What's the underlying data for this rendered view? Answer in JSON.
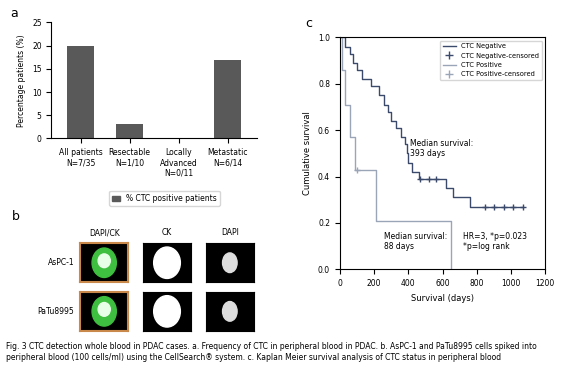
{
  "chart_data": [
    {
      "type": "bar",
      "title": "a",
      "categories": [
        "All patients\nN=7/35",
        "Resectable\nN=1/10",
        "Locally\nAdvanced\nN=0/11",
        "Metastatic\nN=6/14"
      ],
      "series": [
        {
          "name": "% CTC positive patients",
          "color": "#595959",
          "values": [
            20,
            3,
            0,
            17
          ]
        }
      ],
      "y_label": "Percentage patients (%)",
      "ylim": [
        0,
        25
      ],
      "yticks": [
        0,
        5,
        10,
        15,
        20,
        25
      ],
      "legend": "below",
      "grid": false
    },
    {
      "type": "line",
      "title": "c",
      "x_label": "Survival (days)",
      "y_label": "Cumulative survival",
      "xlim": [
        0,
        1200
      ],
      "xticks": [
        0,
        200,
        400,
        600,
        800,
        1000,
        1200
      ],
      "ylim": [
        0.0,
        1.0
      ],
      "yticks": [
        0.0,
        0.2,
        0.4,
        0.6,
        0.8,
        1.0
      ],
      "legend": "upper right",
      "grid": false,
      "series": [
        {
          "name": "CTC Negative",
          "type": "line",
          "line_style": "steps",
          "color": "#3b4a6b",
          "x": [
            0,
            30,
            60,
            80,
            100,
            130,
            180,
            230,
            260,
            280,
            300,
            330,
            360,
            380,
            390,
            400,
            420,
            460,
            620,
            660,
            760,
            1070
          ],
          "values": [
            1.0,
            0.96,
            0.93,
            0.89,
            0.86,
            0.82,
            0.79,
            0.75,
            0.71,
            0.68,
            0.64,
            0.61,
            0.57,
            0.54,
            0.5,
            0.46,
            0.42,
            0.39,
            0.35,
            0.31,
            0.27,
            0.27
          ]
        },
        {
          "name": "CTC Negative-censored",
          "type": "scatter",
          "marker": "plus",
          "color": "#3b4a6b",
          "x": [
            470,
            520,
            560,
            850,
            900,
            960,
            1010,
            1070
          ],
          "values": [
            0.39,
            0.39,
            0.39,
            0.27,
            0.27,
            0.27,
            0.27,
            0.27
          ]
        },
        {
          "name": "CTC Positive",
          "type": "line",
          "line_style": "steps",
          "color": "#9aa5b8",
          "x": [
            0,
            15,
            30,
            60,
            88,
            210,
            650
          ],
          "values": [
            1.0,
            0.86,
            0.71,
            0.57,
            0.43,
            0.21,
            0.0
          ]
        },
        {
          "name": "CTC Positive-censored",
          "type": "scatter",
          "marker": "plus",
          "color": "#9aa5b8",
          "x": [
            100
          ],
          "values": [
            0.43
          ]
        }
      ],
      "annotations": [
        "Median survival:\n393 days",
        "Median survival:\n88 days",
        "HR=3, *p=0.023\n*p=log rank"
      ]
    }
  ],
  "panel_b": {
    "title": "b",
    "columns": [
      "DAPI/CK",
      "CK",
      "DAPI"
    ],
    "rows": [
      "AsPC-1",
      "PaTu8995"
    ]
  },
  "caption": "Fig. 3 CTC detection whole blood in PDAC cases. a. Frequency of CTC in peripheral blood in PDAC. b. AsPC-1 and PaTu8995 cells spiked into peripheral blood (100 cells/ml) using the CellSearch® system. c. Kaplan Meier survival analysis of CTC status in peripheral blood"
}
